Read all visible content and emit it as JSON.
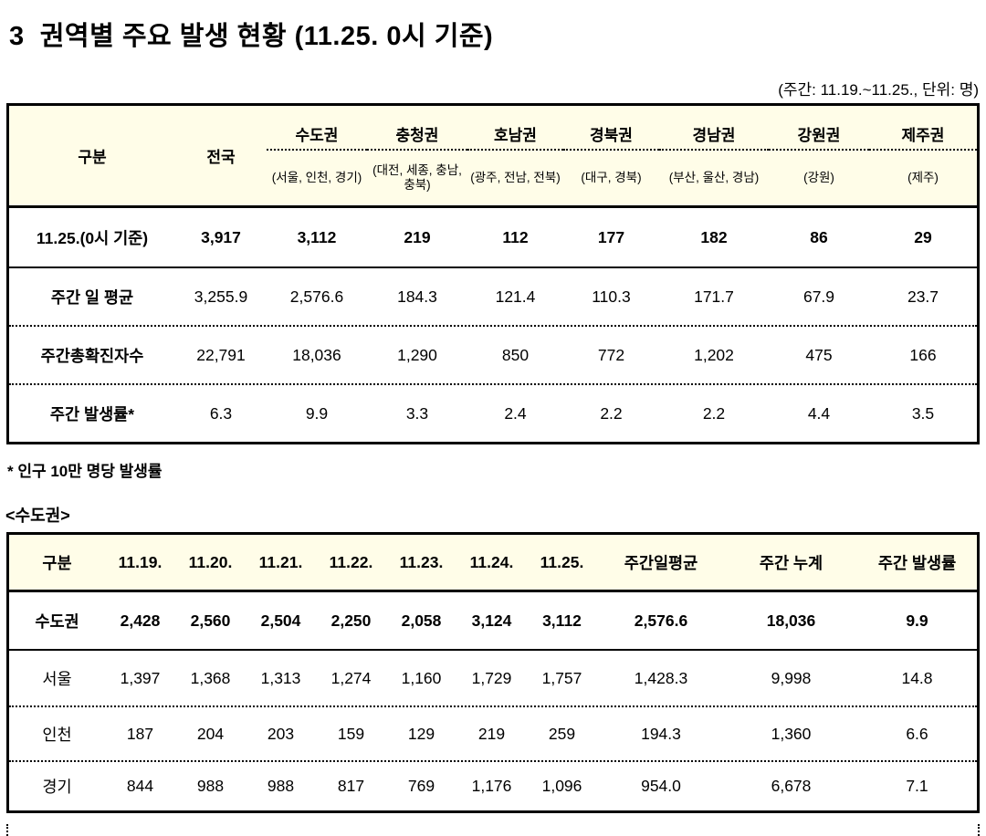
{
  "title": "3  권역별 주요 발생 현황 (11.25. 0시 기준)",
  "subtitle": "(주간: 11.19.~11.25., 단위: 명)",
  "colors": {
    "header_bg": "#FFFDE8",
    "border": "#000000",
    "text": "#000000"
  },
  "region_table": {
    "columns": [
      {
        "name": "구분",
        "sub": null
      },
      {
        "name": "전국",
        "sub": null
      },
      {
        "name": "수도권",
        "sub": "(서울, 인천, 경기)"
      },
      {
        "name": "충청권",
        "sub": "(대전, 세종, 충남, 충북)"
      },
      {
        "name": "호남권",
        "sub": "(광주, 전남, 전북)"
      },
      {
        "name": "경북권",
        "sub": "(대구, 경북)"
      },
      {
        "name": "경남권",
        "sub": "(부산, 울산, 경남)"
      },
      {
        "name": "강원권",
        "sub": "(강원)"
      },
      {
        "name": "제주권",
        "sub": "(제주)"
      }
    ],
    "rows": [
      {
        "label": "11.25.(0시 기준)",
        "bold": true,
        "separator": "none",
        "values": [
          "3,917",
          "3,112",
          "219",
          "112",
          "177",
          "182",
          "86",
          "29"
        ]
      },
      {
        "label": "주간 일 평균",
        "bold": false,
        "separator": "solid",
        "values": [
          "3,255.9",
          "2,576.6",
          "184.3",
          "121.4",
          "110.3",
          "171.7",
          "67.9",
          "23.7"
        ]
      },
      {
        "label": "주간총확진자수",
        "bold": false,
        "separator": "dotted",
        "values": [
          "22,791",
          "18,036",
          "1,290",
          "850",
          "772",
          "1,202",
          "475",
          "166"
        ]
      },
      {
        "label": "주간 발생률*",
        "bold": false,
        "separator": "dotted",
        "values": [
          "6.3",
          "9.9",
          "3.3",
          "2.4",
          "2.2",
          "2.2",
          "4.4",
          "3.5"
        ]
      }
    ]
  },
  "footnote": "* 인구 10만 명당 발생률",
  "section_label": "<수도권>",
  "capital_table": {
    "headers": [
      "구분",
      "11.19.",
      "11.20.",
      "11.21.",
      "11.22.",
      "11.23.",
      "11.24.",
      "11.25.",
      "주간일평균",
      "주간 누계",
      "주간 발생률"
    ],
    "rows": [
      {
        "label": "수도권",
        "bold": true,
        "separator": "none",
        "values": [
          "2,428",
          "2,560",
          "2,504",
          "2,250",
          "2,058",
          "3,124",
          "3,112",
          "2,576.6",
          "18,036",
          "9.9"
        ]
      },
      {
        "label": "서울",
        "bold": false,
        "separator": "solid",
        "values": [
          "1,397",
          "1,368",
          "1,313",
          "1,274",
          "1,160",
          "1,729",
          "1,757",
          "1,428.3",
          "9,998",
          "14.8"
        ]
      },
      {
        "label": "인천",
        "bold": false,
        "separator": "dotted",
        "values": [
          "187",
          "204",
          "203",
          "159",
          "129",
          "219",
          "259",
          "194.3",
          "1,360",
          "6.6"
        ]
      },
      {
        "label": "경기",
        "bold": false,
        "separator": "dotted",
        "values": [
          "844",
          "988",
          "988",
          "817",
          "769",
          "1,176",
          "1,096",
          "954.0",
          "6,678",
          "7.1"
        ]
      }
    ]
  }
}
